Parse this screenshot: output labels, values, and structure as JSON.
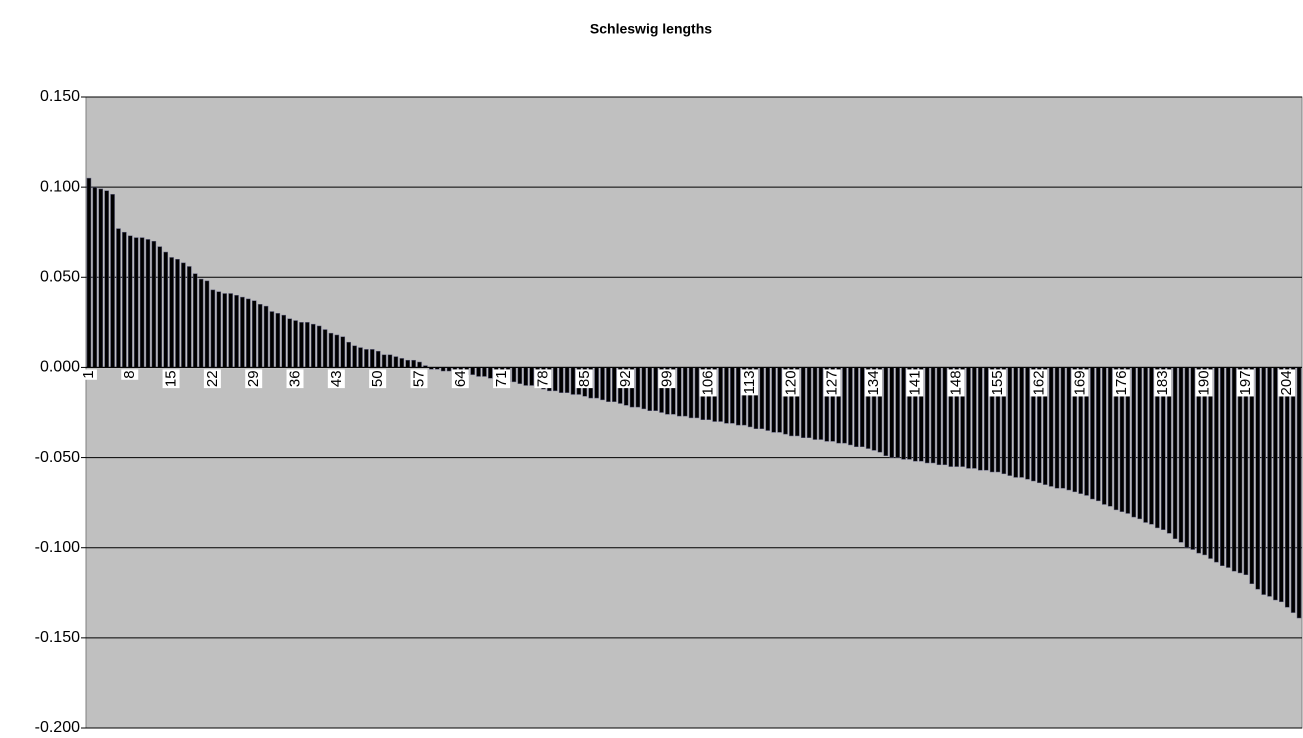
{
  "chart_data": {
    "type": "bar",
    "title": "Schleswig lengths",
    "color": "#000000",
    "plot_background": "#c0c0c0",
    "grid": true,
    "ylim": [
      -0.2,
      0.15
    ],
    "yticks": [
      {
        "value": -0.2,
        "label": "-0.200"
      },
      {
        "value": -0.15,
        "label": "-0.150"
      },
      {
        "value": -0.1,
        "label": "-0.100"
      },
      {
        "value": -0.05,
        "label": "-0.050"
      },
      {
        "value": 0,
        "label": "0.000"
      },
      {
        "value": 0.05,
        "label": "0.050"
      },
      {
        "value": 0.1,
        "label": "0.100"
      },
      {
        "value": 0.15,
        "label": "0.150"
      }
    ],
    "categories": [
      1,
      null,
      null,
      null,
      null,
      null,
      null,
      8,
      null,
      null,
      null,
      null,
      null,
      null,
      15,
      null,
      null,
      null,
      null,
      null,
      null,
      22,
      null,
      null,
      null,
      null,
      null,
      null,
      29,
      null,
      null,
      null,
      null,
      null,
      null,
      36,
      null,
      null,
      null,
      null,
      null,
      null,
      43,
      null,
      null,
      null,
      null,
      null,
      null,
      50,
      null,
      null,
      null,
      null,
      null,
      null,
      57,
      null,
      null,
      null,
      null,
      null,
      null,
      64,
      null,
      null,
      null,
      null,
      null,
      null,
      71,
      null,
      null,
      null,
      null,
      null,
      null,
      78,
      null,
      null,
      null,
      null,
      null,
      null,
      85,
      null,
      null,
      null,
      null,
      null,
      null,
      92,
      null,
      null,
      null,
      null,
      null,
      null,
      99,
      null,
      null,
      null,
      null,
      null,
      null,
      106,
      null,
      null,
      null,
      null,
      null,
      null,
      113,
      null,
      null,
      null,
      null,
      null,
      null,
      120,
      null,
      null,
      null,
      null,
      null,
      null,
      127,
      null,
      null,
      null,
      null,
      null,
      null,
      134,
      null,
      null,
      null,
      null,
      null,
      null,
      141,
      null,
      null,
      null,
      null,
      null,
      null,
      148,
      null,
      null,
      null,
      null,
      null,
      null,
      155,
      null,
      null,
      null,
      null,
      null,
      null,
      162,
      null,
      null,
      null,
      null,
      null,
      null,
      169,
      null,
      null,
      null,
      null,
      null,
      null,
      176,
      null,
      null,
      null,
      null,
      null,
      null,
      183,
      null,
      null,
      null,
      null,
      null,
      null,
      190,
      null,
      null,
      null,
      null,
      null,
      null,
      197,
      null,
      null,
      null,
      null,
      null,
      null,
      204,
      null,
      null
    ],
    "values": [
      0.105,
      0.1,
      0.099,
      0.098,
      0.096,
      0.077,
      0.075,
      0.073,
      0.072,
      0.072,
      0.071,
      0.07,
      0.067,
      0.064,
      0.061,
      0.06,
      0.058,
      0.056,
      0.052,
      0.049,
      0.048,
      0.043,
      0.042,
      0.041,
      0.041,
      0.04,
      0.039,
      0.038,
      0.037,
      0.035,
      0.034,
      0.031,
      0.03,
      0.029,
      0.027,
      0.026,
      0.025,
      0.025,
      0.024,
      0.023,
      0.021,
      0.019,
      0.018,
      0.017,
      0.014,
      0.012,
      0.011,
      0.01,
      0.01,
      0.009,
      0.007,
      0.007,
      0.006,
      0.005,
      0.004,
      0.004,
      0.003,
      0.001,
      -0.001,
      -0.001,
      -0.002,
      -0.002,
      -0.003,
      -0.003,
      -0.004,
      -0.004,
      -0.005,
      -0.005,
      -0.006,
      -0.006,
      -0.007,
      -0.008,
      -0.008,
      -0.009,
      -0.01,
      -0.01,
      -0.011,
      -0.012,
      -0.013,
      -0.013,
      -0.014,
      -0.014,
      -0.015,
      -0.015,
      -0.016,
      -0.017,
      -0.017,
      -0.018,
      -0.019,
      -0.019,
      -0.02,
      -0.021,
      -0.022,
      -0.022,
      -0.023,
      -0.024,
      -0.024,
      -0.025,
      -0.026,
      -0.026,
      -0.027,
      -0.027,
      -0.028,
      -0.028,
      -0.029,
      -0.029,
      -0.03,
      -0.03,
      -0.031,
      -0.031,
      -0.032,
      -0.032,
      -0.033,
      -0.034,
      -0.034,
      -0.035,
      -0.036,
      -0.036,
      -0.037,
      -0.038,
      -0.038,
      -0.039,
      -0.039,
      -0.04,
      -0.04,
      -0.041,
      -0.041,
      -0.042,
      -0.042,
      -0.043,
      -0.044,
      -0.044,
      -0.045,
      -0.046,
      -0.047,
      -0.049,
      -0.05,
      -0.05,
      -0.051,
      -0.051,
      -0.052,
      -0.052,
      -0.053,
      -0.053,
      -0.054,
      -0.054,
      -0.055,
      -0.055,
      -0.055,
      -0.056,
      -0.056,
      -0.057,
      -0.057,
      -0.058,
      -0.058,
      -0.059,
      -0.06,
      -0.061,
      -0.061,
      -0.062,
      -0.063,
      -0.064,
      -0.065,
      -0.066,
      -0.067,
      -0.067,
      -0.068,
      -0.069,
      -0.07,
      -0.071,
      -0.073,
      -0.074,
      -0.076,
      -0.077,
      -0.079,
      -0.08,
      -0.081,
      -0.083,
      -0.084,
      -0.086,
      -0.087,
      -0.089,
      -0.09,
      -0.092,
      -0.095,
      -0.097,
      -0.1,
      -0.101,
      -0.103,
      -0.104,
      -0.106,
      -0.108,
      -0.11,
      -0.111,
      -0.113,
      -0.114,
      -0.115,
      -0.12,
      -0.123,
      -0.126,
      -0.127,
      -0.129,
      -0.13,
      -0.133,
      -0.136,
      -0.139
    ]
  }
}
